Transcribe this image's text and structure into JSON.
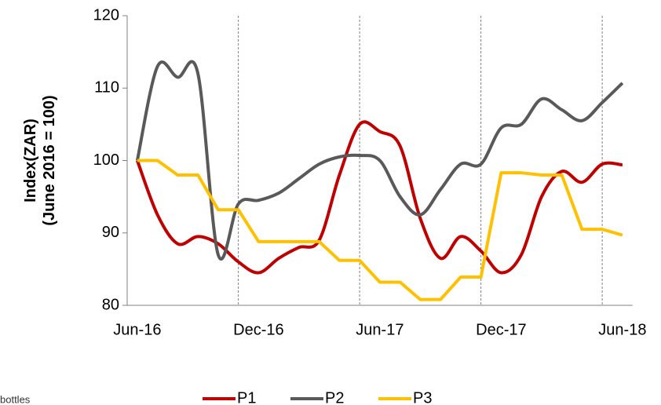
{
  "chart_data": {
    "type": "line",
    "y_label": [
      "Index(ZAR)",
      "(June 2016 = 100)"
    ],
    "categories": [
      "Jun-16",
      null,
      null,
      null,
      null,
      null,
      "Dec-16",
      null,
      null,
      null,
      null,
      null,
      "Jun-17",
      null,
      null,
      null,
      null,
      null,
      "Dec-17",
      null,
      null,
      null,
      null,
      null,
      "Jun-18"
    ],
    "series": [
      {
        "name": "P1",
        "color": "#c00000",
        "smooth": true,
        "values": [
          100,
          92.5,
          88.5,
          89.5,
          88.5,
          86,
          84.5,
          86.5,
          88,
          89,
          98,
          105,
          104,
          102,
          92,
          86.5,
          89.5,
          87.5,
          84.5,
          87,
          95,
          98.5,
          97,
          99.5,
          99.4
        ]
      },
      {
        "name": "P2",
        "color": "#595959",
        "smooth": true,
        "values": [
          100,
          113,
          111.5,
          112,
          87,
          94,
          94.5,
          95.5,
          97.5,
          99.5,
          100.5,
          100.7,
          100,
          95,
          92.5,
          96,
          99.5,
          99.5,
          104.5,
          105,
          108.5,
          107,
          105.5,
          108,
          110.7
        ]
      },
      {
        "name": "P3",
        "color": "#ffc000",
        "smooth": false,
        "values": [
          100,
          100,
          98,
          98,
          93.2,
          93.2,
          88.8,
          88.8,
          88.8,
          88.8,
          86.2,
          86.2,
          83.2,
          83.2,
          80.8,
          80.8,
          83.9,
          83.9,
          98.3,
          98.3,
          98,
          98,
          90.5,
          90.5,
          89.7
        ]
      }
    ],
    "ylim": [
      80,
      120
    ],
    "yticks": [
      80,
      90,
      100,
      110,
      120
    ],
    "vgrid_every": 6,
    "legend": "bottom",
    "footnote": "bottles"
  }
}
